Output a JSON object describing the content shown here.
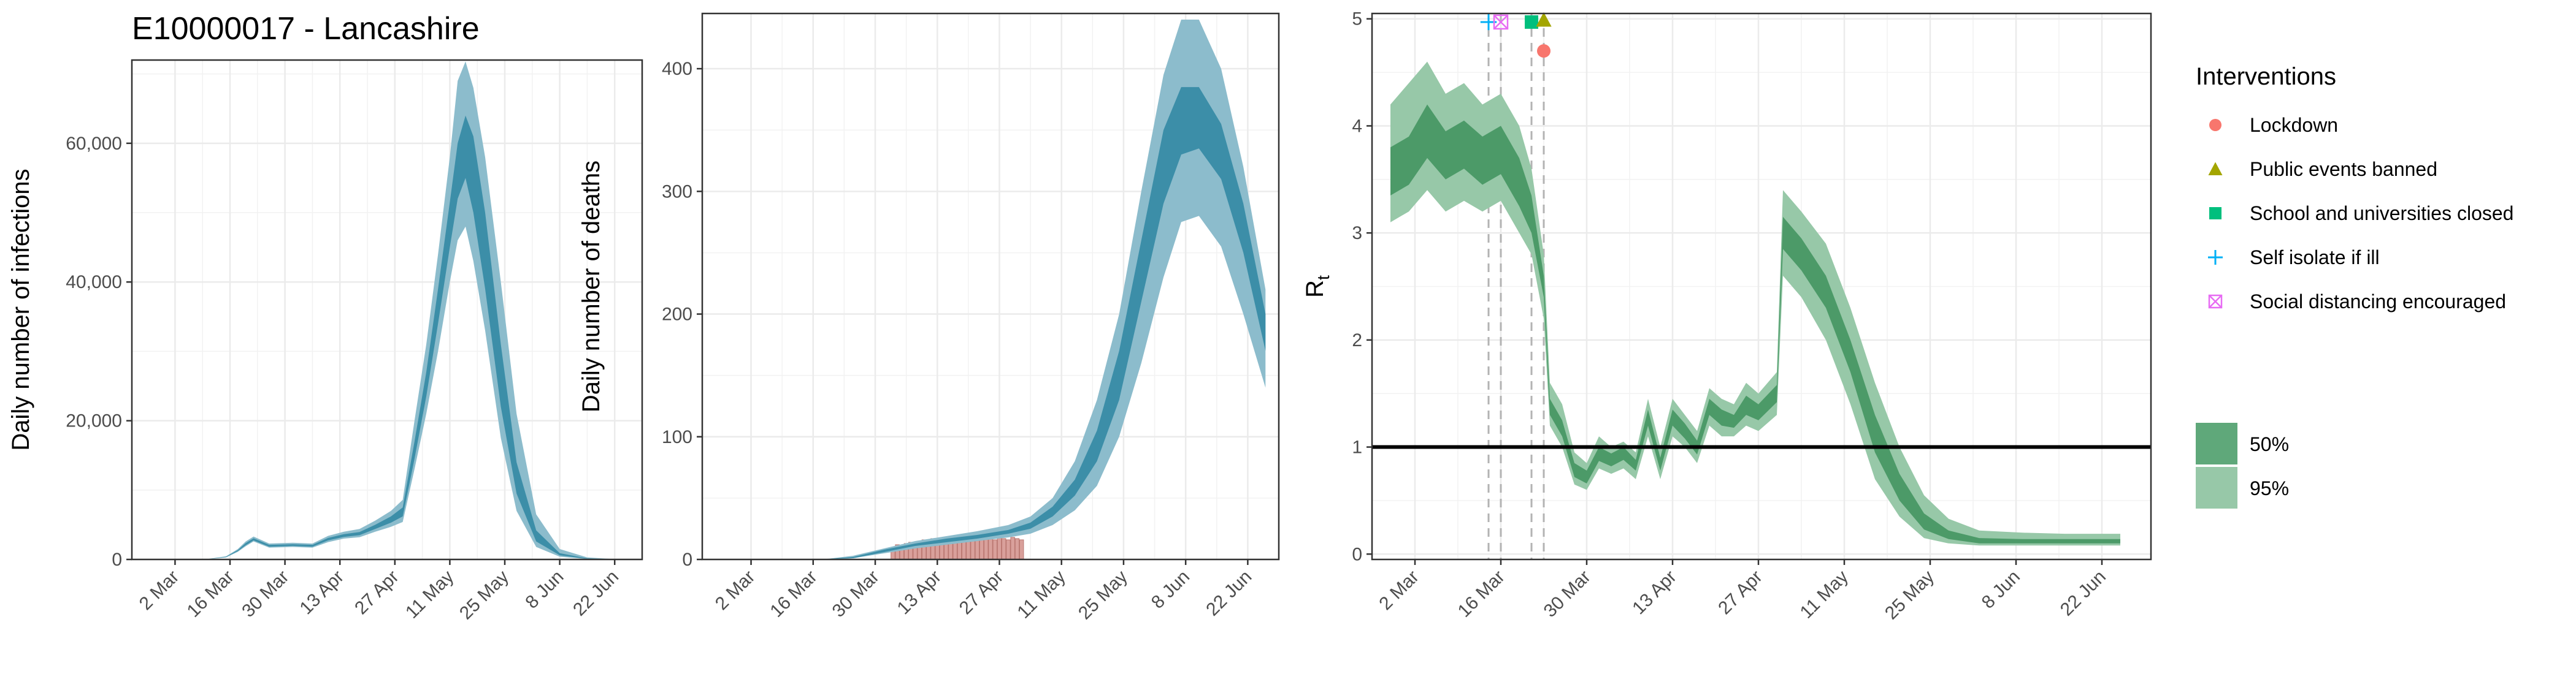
{
  "chart_data": [
    {
      "type": "area",
      "title": "E10000017 - Lancashire",
      "xlabel": "",
      "ylabel": "Daily number of infections",
      "x_tick_labels": [
        "2 Mar",
        "16 Mar",
        "30 Mar",
        "13 Apr",
        "27 Apr",
        "11 May",
        "25 May",
        "8 Jun",
        "22 Jun"
      ],
      "y_tick_labels": [
        "0",
        "20,000",
        "40,000",
        "60,000"
      ],
      "xlim": [
        "2020-02-20",
        "2020-06-29"
      ],
      "ylim": [
        0,
        72000
      ],
      "grid": true,
      "colors": {
        "ci95": "#8cbccc",
        "ci50": "#3c8ea8"
      },
      "x": [
        "2020-03-01",
        "2020-03-10",
        "2020-03-15",
        "2020-03-18",
        "2020-03-20",
        "2020-03-22",
        "2020-03-26",
        "2020-04-01",
        "2020-04-06",
        "2020-04-10",
        "2020-04-14",
        "2020-04-18",
        "2020-04-22",
        "2020-04-26",
        "2020-04-29",
        "2020-05-02",
        "2020-05-05",
        "2020-05-08",
        "2020-05-11",
        "2020-05-13",
        "2020-05-15",
        "2020-05-17",
        "2020-05-20",
        "2020-05-24",
        "2020-05-28",
        "2020-06-02",
        "2020-06-08",
        "2020-06-15",
        "2020-06-22",
        "2020-06-25"
      ],
      "ci95_low": [
        0,
        20,
        300,
        1100,
        1900,
        2600,
        1700,
        1800,
        1700,
        2500,
        3000,
        3200,
        4000,
        4700,
        5400,
        13000,
        21000,
        30000,
        40000,
        46000,
        48000,
        43000,
        33000,
        17500,
        7000,
        1800,
        400,
        50,
        5,
        0
      ],
      "ci95_high": [
        0,
        40,
        450,
        1500,
        2600,
        3300,
        2300,
        2400,
        2300,
        3400,
        4000,
        4400,
        5600,
        7000,
        8600,
        20000,
        31000,
        44000,
        58000,
        69000,
        71800,
        68000,
        58000,
        40000,
        21000,
        6500,
        1500,
        300,
        40,
        0
      ],
      "ci50_low": [
        0,
        25,
        330,
        1200,
        2050,
        2750,
        1850,
        1950,
        1850,
        2750,
        3250,
        3500,
        4400,
        5300,
        6200,
        14500,
        23500,
        34000,
        45000,
        52000,
        55000,
        50000,
        39000,
        22000,
        9500,
        2600,
        600,
        90,
        10,
        0
      ],
      "ci50_high": [
        0,
        33,
        400,
        1350,
        2350,
        3050,
        2100,
        2200,
        2100,
        3100,
        3650,
        3950,
        5000,
        6200,
        7500,
        17000,
        27000,
        39000,
        51500,
        60000,
        64000,
        61000,
        50000,
        31000,
        14000,
        4200,
        900,
        160,
        20,
        0
      ]
    },
    {
      "type": "area",
      "title": "",
      "xlabel": "",
      "ylabel": "Daily number of deaths",
      "x_tick_labels": [
        "2 Mar",
        "16 Mar",
        "30 Mar",
        "13 Apr",
        "27 Apr",
        "11 May",
        "25 May",
        "8 Jun",
        "22 Jun"
      ],
      "y_tick_labels": [
        "0",
        "100",
        "200",
        "300",
        "400"
      ],
      "xlim": [
        "2020-02-20",
        "2020-06-29"
      ],
      "ylim": [
        0,
        445
      ],
      "grid": true,
      "colors": {
        "ci95": "#8cbccc",
        "ci50": "#3c8ea8",
        "bars": "#d9a09b",
        "bar_edge": "#b8756f"
      },
      "x": [
        "2020-03-01",
        "2020-03-18",
        "2020-03-25",
        "2020-04-01",
        "2020-04-08",
        "2020-04-15",
        "2020-04-22",
        "2020-04-29",
        "2020-05-04",
        "2020-05-09",
        "2020-05-14",
        "2020-05-19",
        "2020-05-24",
        "2020-05-29",
        "2020-06-03",
        "2020-06-07",
        "2020-06-11",
        "2020-06-16",
        "2020-06-21",
        "2020-06-26"
      ],
      "ci95_low": [
        0,
        0,
        1,
        5,
        9,
        12,
        15,
        18,
        21,
        28,
        40,
        60,
        100,
        160,
        230,
        275,
        280,
        255,
        200,
        140
      ],
      "ci95_high": [
        0,
        0,
        3,
        9,
        15,
        19,
        23,
        28,
        35,
        50,
        80,
        130,
        200,
        300,
        395,
        440,
        440,
        400,
        320,
        220
      ],
      "ci50_low": [
        0,
        0,
        1,
        6,
        11,
        14,
        17,
        21,
        25,
        35,
        52,
        80,
        130,
        210,
        290,
        330,
        335,
        310,
        250,
        170
      ],
      "ci50_high": [
        0,
        0,
        2,
        8,
        13,
        17,
        20,
        24,
        30,
        43,
        65,
        105,
        170,
        260,
        350,
        385,
        385,
        355,
        290,
        200
      ],
      "bars_x": [
        "2020-04-03",
        "2020-04-04",
        "2020-04-05",
        "2020-04-06",
        "2020-04-07",
        "2020-04-08",
        "2020-04-09",
        "2020-04-10",
        "2020-04-11",
        "2020-04-12",
        "2020-04-13",
        "2020-04-14",
        "2020-04-15",
        "2020-04-16",
        "2020-04-17",
        "2020-04-18",
        "2020-04-19",
        "2020-04-20",
        "2020-04-21",
        "2020-04-22",
        "2020-04-23",
        "2020-04-24",
        "2020-04-25",
        "2020-04-26",
        "2020-04-27",
        "2020-04-28",
        "2020-04-29",
        "2020-04-30",
        "2020-05-01",
        "2020-05-02"
      ],
      "bars_values": [
        10,
        12,
        11,
        13,
        14,
        12,
        15,
        16,
        14,
        17,
        15,
        16,
        18,
        17,
        15,
        18,
        16,
        17,
        18,
        16,
        17,
        18,
        17,
        16,
        18,
        17,
        16,
        18,
        17,
        16
      ]
    },
    {
      "type": "area",
      "title": "",
      "xlabel": "",
      "ylabel": "R",
      "ylabel_subscript": "t",
      "x_tick_labels": [
        "2 Mar",
        "16 Mar",
        "30 Mar",
        "13 Apr",
        "27 Apr",
        "11 May",
        "25 May",
        "8 Jun",
        "22 Jun"
      ],
      "y_tick_labels": [
        "0",
        "1",
        "2",
        "3",
        "4",
        "5"
      ],
      "xlim": [
        "2020-02-24",
        "2020-06-30"
      ],
      "ylim": [
        -0.05,
        5.05
      ],
      "grid": true,
      "reference_line": 1,
      "colors": {
        "ci95": "#97c8a8",
        "ci50": "#4c9a68",
        "reference_line": "#000000",
        "vline": "#b3b3b3"
      },
      "x": [
        "2020-02-27",
        "2020-03-01",
        "2020-03-04",
        "2020-03-07",
        "2020-03-10",
        "2020-03-13",
        "2020-03-16",
        "2020-03-19",
        "2020-03-21",
        "2020-03-23",
        "2020-03-24",
        "2020-03-26",
        "2020-03-28",
        "2020-03-30",
        "2020-04-01",
        "2020-04-03",
        "2020-04-05",
        "2020-04-07",
        "2020-04-09",
        "2020-04-11",
        "2020-04-13",
        "2020-04-15",
        "2020-04-17",
        "2020-04-19",
        "2020-04-21",
        "2020-04-23",
        "2020-04-25",
        "2020-04-27",
        "2020-04-30",
        "2020-05-01",
        "2020-05-04",
        "2020-05-08",
        "2020-05-12",
        "2020-05-16",
        "2020-05-20",
        "2020-05-24",
        "2020-05-28",
        "2020-06-02",
        "2020-06-09",
        "2020-06-16",
        "2020-06-25"
      ],
      "ci95_low": [
        3.1,
        3.2,
        3.4,
        3.2,
        3.3,
        3.2,
        3.3,
        3.0,
        2.8,
        2.2,
        1.2,
        1.0,
        0.65,
        0.6,
        0.8,
        0.75,
        0.8,
        0.7,
        1.1,
        0.7,
        1.1,
        1.0,
        0.85,
        1.2,
        1.1,
        1.1,
        1.2,
        1.15,
        1.3,
        2.6,
        2.4,
        2.0,
        1.4,
        0.7,
        0.35,
        0.15,
        0.1,
        0.08,
        0.08,
        0.08,
        0.08
      ],
      "ci95_high": [
        4.2,
        4.4,
        4.6,
        4.3,
        4.4,
        4.2,
        4.3,
        4.0,
        3.6,
        2.8,
        1.6,
        1.4,
        0.95,
        0.85,
        1.1,
        1.0,
        1.05,
        0.95,
        1.45,
        1.0,
        1.45,
        1.3,
        1.15,
        1.55,
        1.45,
        1.4,
        1.6,
        1.5,
        1.7,
        3.4,
        3.2,
        2.9,
        2.3,
        1.6,
        1.0,
        0.55,
        0.33,
        0.22,
        0.2,
        0.19,
        0.19
      ],
      "ci50_low": [
        3.35,
        3.45,
        3.7,
        3.5,
        3.6,
        3.45,
        3.55,
        3.25,
        3.0,
        2.4,
        1.3,
        1.1,
        0.72,
        0.66,
        0.87,
        0.82,
        0.88,
        0.78,
        1.2,
        0.78,
        1.2,
        1.08,
        0.93,
        1.3,
        1.2,
        1.18,
        1.3,
        1.25,
        1.42,
        2.85,
        2.65,
        2.3,
        1.7,
        0.95,
        0.5,
        0.23,
        0.14,
        0.1,
        0.1,
        0.1,
        0.1
      ],
      "ci50_high": [
        3.8,
        3.9,
        4.2,
        3.95,
        4.05,
        3.9,
        4.0,
        3.7,
        3.35,
        2.6,
        1.45,
        1.25,
        0.85,
        0.78,
        1.0,
        0.94,
        1.0,
        0.88,
        1.35,
        0.9,
        1.35,
        1.22,
        1.06,
        1.45,
        1.35,
        1.3,
        1.48,
        1.4,
        1.58,
        3.15,
        2.95,
        2.6,
        2.0,
        1.3,
        0.75,
        0.38,
        0.22,
        0.15,
        0.14,
        0.14,
        0.14
      ],
      "interventions": [
        {
          "name": "Self isolate if ill",
          "date": "2020-03-14",
          "marker": "plus",
          "color": "#00b0f6",
          "y": 4.97
        },
        {
          "name": "Social distancing encouraged",
          "date": "2020-03-16",
          "marker": "boxcross",
          "color": "#e76bf3",
          "y": 4.97
        },
        {
          "name": "School and universities closed",
          "date": "2020-03-21",
          "marker": "square",
          "color": "#00bf7d",
          "y": 4.97
        },
        {
          "name": "Public events banned",
          "date": "2020-03-23",
          "marker": "triangle",
          "color": "#a3a500",
          "y": 4.99
        },
        {
          "name": "Lockdown",
          "date": "2020-03-23",
          "marker": "circle",
          "color": "#f8766d",
          "y": 4.7
        }
      ],
      "vline_dates": [
        "2020-03-14",
        "2020-03-16",
        "2020-03-21",
        "2020-03-23"
      ]
    }
  ],
  "legend": {
    "title": "Interventions",
    "items": [
      {
        "label": "Lockdown",
        "marker": "circle",
        "color": "#f8766d"
      },
      {
        "label": "Public events banned",
        "marker": "triangle",
        "color": "#a3a500"
      },
      {
        "label": "School and universities closed",
        "marker": "square",
        "color": "#00bf7d"
      },
      {
        "label": "Self isolate if ill",
        "marker": "plus",
        "color": "#00b0f6"
      },
      {
        "label": "Social distancing encouraged",
        "marker": "boxcross",
        "color": "#e76bf3"
      }
    ],
    "ci_items": [
      {
        "label": "50%",
        "color": "#5fa87a"
      },
      {
        "label": "95%",
        "color": "#97c8a8"
      }
    ]
  }
}
